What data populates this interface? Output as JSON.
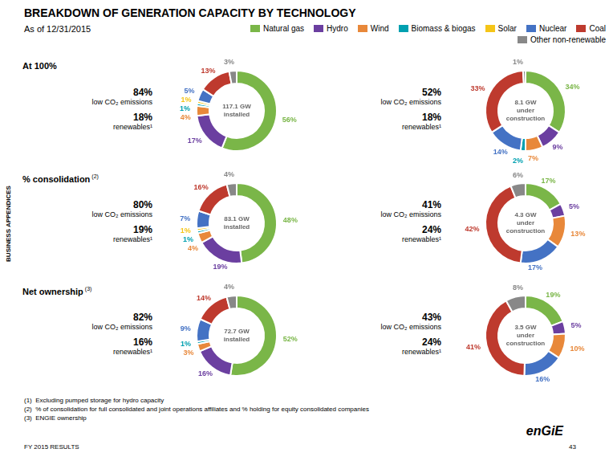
{
  "title": "BREAKDOWN OF GENERATION CAPACITY BY TECHNOLOGY",
  "subtitle": "As of 12/31/2015",
  "legend": "top",
  "annotations": [
    "BUSINESS APPENDICES",
    "FY 2015 RESULTS",
    "43",
    "enGiE"
  ],
  "footnotes": [
    "(1)  Excluding pumped storage for hydro capacity",
    "(2)  % of consolidation for full consolidated and joint operations affiliates and % holding for equity consolidated companies",
    "(3)  ENGIE ownership"
  ],
  "chart_data": [
    {
      "type": "doughnut",
      "group": "At 100%",
      "title": "117.1 GW\ninstalled",
      "annotations": [
        "84%",
        "low CO₂ emissions",
        "18%",
        "renewables¹"
      ],
      "categories": [
        "Natural gas",
        "Hydro",
        "Wind",
        "Biomass & biogas",
        "Solar",
        "Nuclear",
        "Coal",
        "Other non-renewable"
      ],
      "colors": [
        "#7AB648",
        "#6B3FA0",
        "#E8883A",
        "#00A0B0",
        "#F5C518",
        "#4472C4",
        "#BE3A2E",
        "#888888"
      ],
      "values": [
        56,
        17,
        4,
        1,
        1,
        5,
        13,
        3
      ],
      "value_labels": [
        "56%",
        "17%",
        "4%",
        "1%",
        "1%",
        "5%",
        "13%",
        "3%"
      ],
      "data_labels": true
    },
    {
      "type": "doughnut",
      "group": "At 100%",
      "title": "8.1 GW\nunder\nconstruction",
      "annotations": [
        "52%",
        "low CO₂ emissions",
        "18%",
        "renewables¹"
      ],
      "categories": [
        "Natural gas",
        "Hydro",
        "Wind",
        "Biomass & biogas",
        "Solar",
        "Nuclear",
        "Coal",
        "Other non-renewable"
      ],
      "colors": [
        "#7AB648",
        "#6B3FA0",
        "#E8883A",
        "#00A0B0",
        "#F5C518",
        "#4472C4",
        "#BE3A2E",
        "#888888"
      ],
      "values": [
        34,
        9,
        7,
        2,
        0,
        14,
        33,
        1
      ],
      "value_labels": [
        "34%",
        "9%",
        "7%",
        "2%",
        null,
        "14%",
        "33%",
        "1%"
      ],
      "data_labels": true
    },
    {
      "type": "doughnut",
      "group": "% consolidation",
      "group_note": "(2)",
      "title": "83.1 GW\ninstalled",
      "annotations": [
        "80%",
        "low CO₂ emissions",
        "19%",
        "renewables¹"
      ],
      "categories": [
        "Natural gas",
        "Hydro",
        "Wind",
        "Biomass & biogas",
        "Solar",
        "Nuclear",
        "Coal",
        "Other non-renewable"
      ],
      "colors": [
        "#7AB648",
        "#6B3FA0",
        "#E8883A",
        "#00A0B0",
        "#F5C518",
        "#4472C4",
        "#BE3A2E",
        "#888888"
      ],
      "values": [
        48,
        19,
        4,
        1,
        1,
        7,
        16,
        4
      ],
      "value_labels": [
        "48%",
        "19%",
        "4%",
        "1%",
        "1%",
        "7%",
        "16%",
        "4%"
      ],
      "data_labels": true
    },
    {
      "type": "doughnut",
      "group": "% consolidation",
      "group_note": "(2)",
      "title": "4.3 GW\nunder\nconstruction",
      "annotations": [
        "41%",
        "low CO₂ emissions",
        "24%",
        "renewables¹"
      ],
      "categories": [
        "Natural gas",
        "Hydro",
        "Wind",
        "Biomass & biogas",
        "Solar",
        "Nuclear",
        "Coal",
        "Other non-renewable"
      ],
      "colors": [
        "#7AB648",
        "#6B3FA0",
        "#E8883A",
        "#00A0B0",
        "#F5C518",
        "#4472C4",
        "#BE3A2E",
        "#888888"
      ],
      "values": [
        17,
        5,
        13,
        0,
        0,
        17,
        42,
        6
      ],
      "value_labels": [
        "17%",
        "5%",
        "13%",
        null,
        null,
        "17%",
        "42%",
        "6%"
      ],
      "data_labels": true
    },
    {
      "type": "doughnut",
      "group": "Net ownership",
      "group_note": "(3)",
      "title": "72.7 GW\ninstalled",
      "annotations": [
        "82%",
        "low CO₂ emissions",
        "16%",
        "renewables¹"
      ],
      "categories": [
        "Natural gas",
        "Hydro",
        "Wind",
        "Biomass & biogas",
        "Solar",
        "Nuclear",
        "Coal",
        "Other non-renewable"
      ],
      "colors": [
        "#7AB648",
        "#6B3FA0",
        "#E8883A",
        "#00A0B0",
        "#F5C518",
        "#4472C4",
        "#BE3A2E",
        "#888888"
      ],
      "values": [
        52,
        16,
        3,
        1,
        0,
        9,
        14,
        4
      ],
      "value_labels": [
        "52%",
        "16%",
        "3%",
        "1%",
        null,
        "9%",
        "14%",
        "4%"
      ],
      "data_labels": true
    },
    {
      "type": "doughnut",
      "group": "Net ownership",
      "group_note": "(3)",
      "title": "3.5 GW\nunder\nconstruction",
      "annotations": [
        "43%",
        "low CO₂ emissions",
        "24%",
        "renewables¹"
      ],
      "categories": [
        "Natural gas",
        "Hydro",
        "Wind",
        "Biomass & biogas",
        "Solar",
        "Nuclear",
        "Coal",
        "Other non-renewable"
      ],
      "colors": [
        "#7AB648",
        "#6B3FA0",
        "#E8883A",
        "#00A0B0",
        "#F5C518",
        "#4472C4",
        "#BE3A2E",
        "#888888"
      ],
      "values": [
        19,
        5,
        10,
        0,
        0,
        16,
        41,
        8
      ],
      "value_labels": [
        "19%",
        "5%",
        "10%",
        null,
        null,
        "16%",
        "41%",
        "8%"
      ],
      "data_labels": true
    }
  ]
}
